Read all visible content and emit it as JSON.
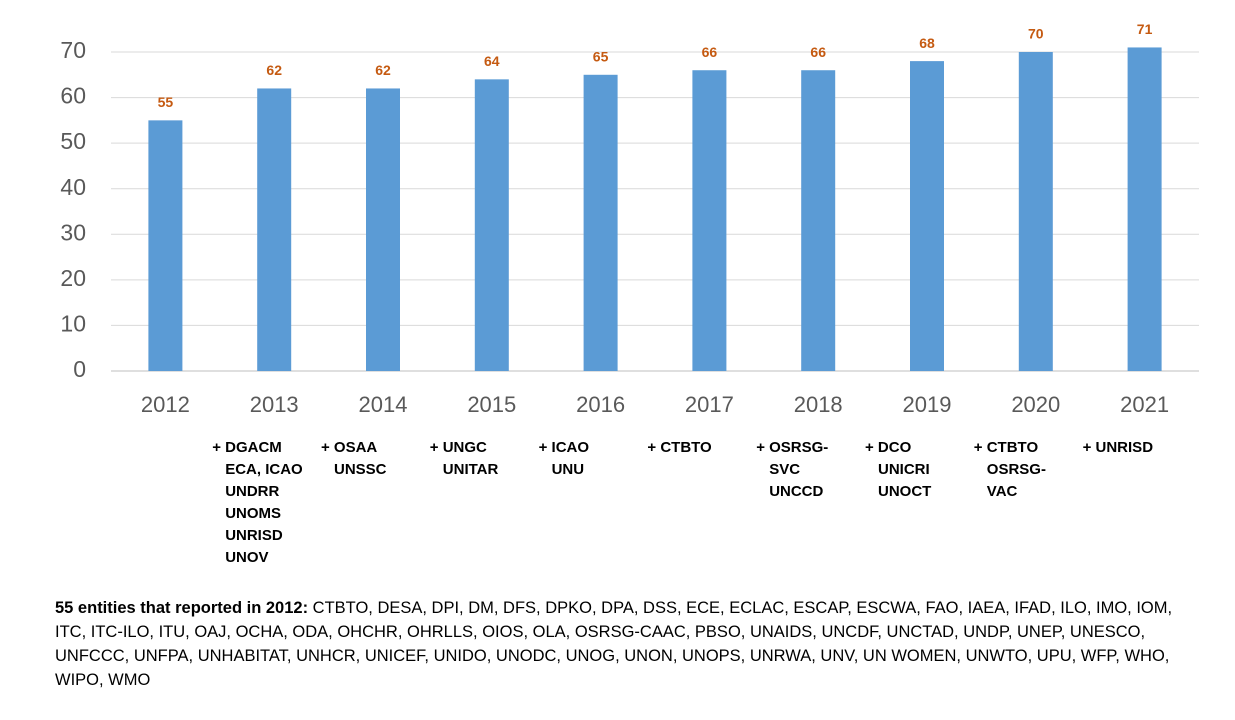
{
  "chart_data": {
    "type": "bar",
    "categories": [
      "2012",
      "2013",
      "2014",
      "2015",
      "2016",
      "2017",
      "2018",
      "2019",
      "2020",
      "2021"
    ],
    "values": [
      55,
      62,
      62,
      64,
      65,
      66,
      66,
      68,
      70,
      71
    ],
    "color": "#5b9bd5",
    "value_label_color": "#c55a11",
    "ylim": [
      0,
      70
    ],
    "yticks": [
      0,
      10,
      20,
      30,
      40,
      50,
      60,
      70
    ],
    "grid": true,
    "additions": [
      null,
      [
        "+ DGACM",
        "ECA, ICAO",
        "UNDRR",
        "UNOMS",
        "UNRISD",
        "UNOV"
      ],
      [
        "+ OSAA",
        "UNSSC"
      ],
      [
        "+ UNGC",
        "UNITAR"
      ],
      [
        "+ ICAO",
        "UNU"
      ],
      [
        "+ CTBTO"
      ],
      [
        "+ OSRSG-",
        "SVC",
        "UNCCD"
      ],
      [
        "+ DCO",
        "UNICRI",
        "UNOCT"
      ],
      [
        "+ CTBTO",
        "OSRSG-",
        "VAC"
      ],
      [
        "+ UNRISD"
      ]
    ],
    "footnote": {
      "label": "55 entities that reported in 2012:",
      "text": "CTBTO, DESA, DPI, DM, DFS, DPKO, DPA, DSS, ECE, ECLAC, ESCAP, ESCWA, FAO, IAEA, IFAD, ILO, IMO, IOM, ITC, ITC-ILO, ITU, OAJ, OCHA, ODA, OHCHR, OHRLLS, OIOS, OLA, OSRSG-CAAC, PBSO, UNAIDS, UNCDF, UNCTAD, UNDP, UNEP, UNESCO, UNFCCC, UNFPA, UNHABITAT, UNHCR, UNICEF, UNIDO, UNODC, UNOG, UNON, UNOPS, UNRWA, UNV, UN WOMEN, UNWTO, UPU, WFP, WHO, WIPO, WMO"
    }
  }
}
